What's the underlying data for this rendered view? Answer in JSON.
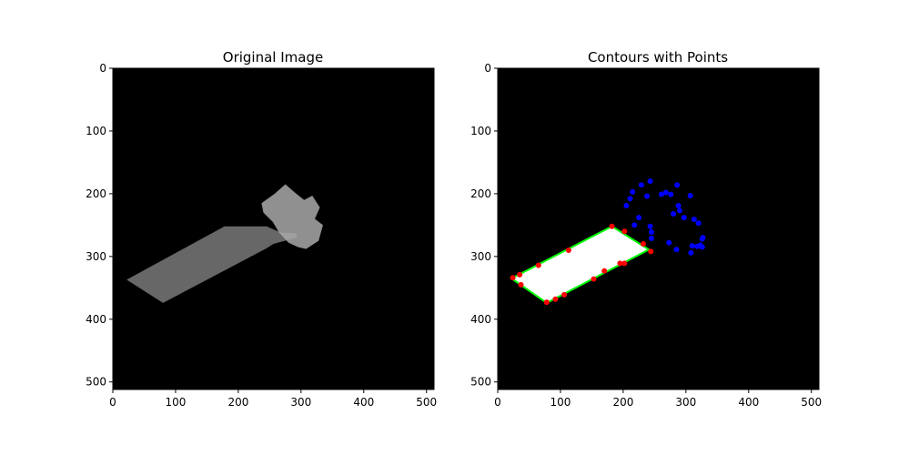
{
  "colors": {
    "background": "#000000",
    "satellite_fill": "#8a8a8a",
    "mask_fill": "#ffffff",
    "contour_line": "#00ff00",
    "contour_points": "#ff0000",
    "scatter_points": "#0000ff"
  },
  "chart_data": [
    {
      "type": "image",
      "title": "Original Image",
      "xlim": [
        0,
        512
      ],
      "ylim": [
        512,
        0
      ],
      "xticks": [
        0,
        100,
        200,
        300,
        400,
        500
      ],
      "yticks": [
        0,
        100,
        200,
        300,
        400,
        500
      ],
      "grid": false,
      "image_regions": {
        "solar_panel": [
          [
            22,
            337
          ],
          [
            178,
            252
          ],
          [
            245,
            252
          ],
          [
            268,
            262
          ],
          [
            293,
            263
          ],
          [
            293,
            270
          ],
          [
            256,
            280
          ],
          [
            245,
            287
          ],
          [
            80,
            374
          ]
        ],
        "body": [
          [
            237,
            215
          ],
          [
            258,
            200
          ],
          [
            275,
            185
          ],
          [
            290,
            198
          ],
          [
            305,
            210
          ],
          [
            318,
            203
          ],
          [
            330,
            222
          ],
          [
            322,
            240
          ],
          [
            335,
            250
          ],
          [
            328,
            275
          ],
          [
            308,
            288
          ],
          [
            295,
            285
          ],
          [
            280,
            278
          ],
          [
            265,
            262
          ],
          [
            255,
            245
          ],
          [
            240,
            230
          ]
        ]
      }
    },
    {
      "type": "scatter",
      "title": "Contours with Points",
      "xlim": [
        0,
        512
      ],
      "ylim": [
        512,
        0
      ],
      "xticks": [
        0,
        100,
        200,
        300,
        400,
        500
      ],
      "yticks": [
        0,
        100,
        200,
        300,
        400,
        500
      ],
      "grid": false,
      "filled_contour": [
        [
          22,
          335
        ],
        [
          182,
          252
        ],
        [
          241,
          289
        ],
        [
          78,
          374
        ]
      ],
      "series": [
        {
          "color": "red",
          "points": [
            [
              24,
              334
            ],
            [
              35,
              329
            ],
            [
              37,
              345
            ],
            [
              65,
              314
            ],
            [
              78,
              373
            ],
            [
              92,
              368
            ],
            [
              106,
              361
            ],
            [
              113,
              290
            ],
            [
              153,
              336
            ],
            [
              170,
              323
            ],
            [
              182,
              252
            ],
            [
              195,
              311
            ],
            [
              202,
              311
            ],
            [
              232,
              280
            ],
            [
              244,
              292
            ],
            [
              202,
              260
            ]
          ]
        },
        {
          "color": "blue",
          "points": [
            [
              205,
              219
            ],
            [
              211,
              208
            ],
            [
              215,
              197
            ],
            [
              218,
              250
            ],
            [
              225,
              238
            ],
            [
              229,
              186
            ],
            [
              238,
              204
            ],
            [
              243,
              180
            ],
            [
              243,
              252
            ],
            [
              245,
              261
            ],
            [
              245,
              271
            ],
            [
              261,
              201
            ],
            [
              268,
              198
            ],
            [
              273,
              278
            ],
            [
              276,
              201
            ],
            [
              280,
              232
            ],
            [
              285,
              289
            ],
            [
              286,
              186
            ],
            [
              288,
              219
            ],
            [
              290,
              227
            ],
            [
              297,
              238
            ],
            [
              307,
              203
            ],
            [
              308,
              294
            ],
            [
              310,
              283
            ],
            [
              313,
              241
            ],
            [
              318,
              284
            ],
            [
              320,
              247
            ],
            [
              323,
              282
            ],
            [
              326,
              272
            ],
            [
              327,
              270
            ],
            [
              326,
              285
            ]
          ]
        }
      ]
    }
  ]
}
